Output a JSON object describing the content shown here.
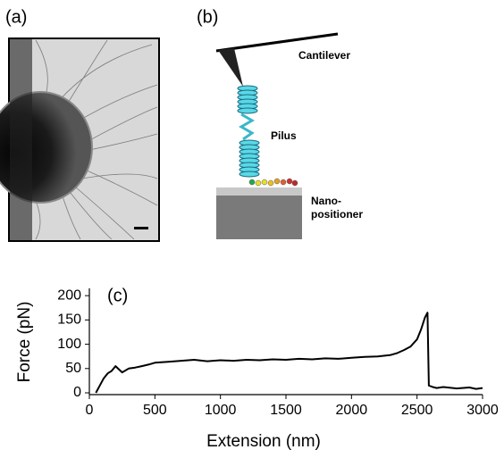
{
  "panel_labels": [
    "(a)",
    "(b)",
    "(c)"
  ],
  "diagram": {
    "cantilever": "Cantilever",
    "pilus": "Pilus",
    "nano_positioner": [
      "Nano-",
      "positioner"
    ]
  },
  "chart_data": {
    "type": "line",
    "x_label": "Extension (nm)",
    "y_label": "Force (pN)",
    "xlim": [
      0,
      3000
    ],
    "xticks": [
      0,
      500,
      1000,
      1500,
      2000,
      2500,
      3000
    ],
    "ylim": [
      0,
      215
    ],
    "yticks": [
      0,
      50,
      100,
      150,
      200
    ],
    "series": [
      {
        "color": "#000000",
        "x": [
          50,
          80,
          110,
          140,
          170,
          200,
          250,
          300,
          350,
          400,
          450,
          500,
          600,
          700,
          800,
          900,
          1000,
          1100,
          1200,
          1300,
          1400,
          1500,
          1600,
          1700,
          1800,
          1900,
          2000,
          2100,
          2200,
          2300,
          2350,
          2400,
          2450,
          2500,
          2530,
          2560,
          2580,
          2590,
          2620,
          2650,
          2700,
          2800,
          2900,
          2950,
          3000
        ],
        "values": [
          0,
          15,
          30,
          40,
          45,
          55,
          42,
          50,
          52,
          55,
          58,
          62,
          64,
          66,
          68,
          65,
          67,
          66,
          68,
          67,
          69,
          68,
          70,
          69,
          71,
          70,
          72,
          74,
          75,
          78,
          82,
          88,
          95,
          110,
          130,
          155,
          165,
          15,
          12,
          10,
          12,
          9,
          11,
          8,
          10
        ]
      }
    ]
  }
}
